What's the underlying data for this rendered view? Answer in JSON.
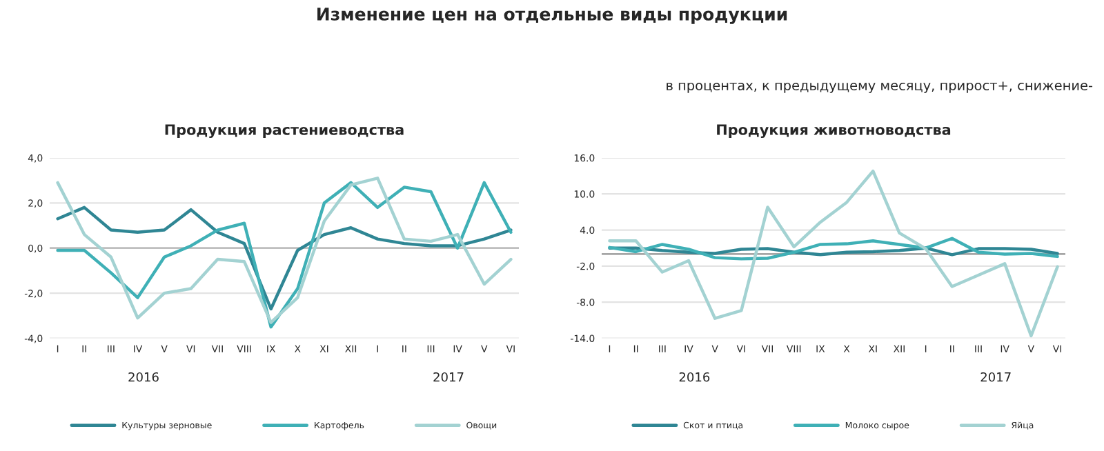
{
  "chart_data": [
    {
      "type": "line",
      "title": "Продукция растениеводства",
      "categories": [
        "I",
        "II",
        "III",
        "IV",
        "V",
        "VI",
        "VII",
        "VIII",
        "IX",
        "X",
        "XI",
        "XII",
        "I",
        "II",
        "III",
        "IV",
        "V",
        "VI"
      ],
      "series": [
        {
          "name": "Культуры зерновые",
          "color": "#2f8694",
          "values": [
            1.3,
            1.8,
            0.8,
            0.7,
            0.8,
            1.7,
            0.7,
            0.2,
            -2.7,
            -0.1,
            0.6,
            0.9,
            0.4,
            0.2,
            0.1,
            0.1,
            0.4,
            0.8
          ]
        },
        {
          "name": "Картофель",
          "color": "#3fb0b6",
          "values": [
            -0.1,
            -0.1,
            -1.1,
            -2.2,
            -0.4,
            0.1,
            0.8,
            1.1,
            -3.5,
            -1.8,
            2.0,
            2.9,
            1.8,
            2.7,
            2.5,
            0.0,
            2.9,
            0.7
          ]
        },
        {
          "name": "Овощи",
          "color": "#a3d2d2",
          "values": [
            2.9,
            0.6,
            -0.4,
            -3.1,
            -2.0,
            -1.8,
            -0.5,
            -0.6,
            -3.3,
            -2.2,
            1.2,
            2.8,
            3.1,
            0.4,
            0.3,
            0.6,
            -1.6,
            -0.5
          ]
        }
      ],
      "ylim": [
        -4,
        4
      ],
      "yticks": [
        {
          "value": -4,
          "label": "-4,0"
        },
        {
          "value": -2,
          "label": "-2,0"
        },
        {
          "value": 0,
          "label": "0,0"
        },
        {
          "value": 2,
          "label": "2,0"
        },
        {
          "value": 4,
          "label": "4,0"
        }
      ],
      "grid": "y",
      "legend": "bottom",
      "marker": "none",
      "line_style": "solid",
      "ref_lines": [
        {
          "axis": "y",
          "value": 0,
          "color": "#bfbfbf"
        }
      ],
      "annotations": [
        "Изменение цен на отдельные виды продукции",
        "в процентах, к предыдущему месяцу, прирост+, снижение-",
        "2016",
        "2017"
      ]
    },
    {
      "type": "line",
      "title": "Продукция животноводства",
      "categories": [
        "I",
        "II",
        "III",
        "IV",
        "V",
        "VI",
        "VII",
        "VIII",
        "IX",
        "X",
        "XI",
        "XII",
        "I",
        "II",
        "III",
        "IV",
        "V",
        "VI"
      ],
      "series": [
        {
          "name": "Скот и птица",
          "color": "#2f8694",
          "values": [
            1.0,
            1.0,
            0.6,
            0.3,
            0.1,
            0.8,
            0.9,
            0.3,
            -0.1,
            0.3,
            0.4,
            0.6,
            1.0,
            -0.1,
            0.9,
            0.9,
            0.8,
            0.1
          ]
        },
        {
          "name": "Молоко сырое",
          "color": "#3fb0b6",
          "values": [
            1.1,
            0.4,
            1.6,
            0.8,
            -0.6,
            -0.8,
            -0.7,
            0.3,
            1.6,
            1.7,
            2.2,
            1.6,
            1.0,
            2.6,
            0.3,
            0.0,
            0.1,
            -0.4
          ]
        },
        {
          "name": "Яйца",
          "color": "#a3d2d2",
          "values": [
            2.2,
            2.2,
            -3.0,
            -1.1,
            -10.7,
            -9.4,
            7.8,
            1.2,
            5.3,
            8.6,
            13.8,
            3.5,
            0.9,
            -5.4,
            -3.5,
            -1.6,
            -13.6,
            -2.1
          ]
        }
      ],
      "ylim": [
        -14,
        16
      ],
      "yticks": [
        {
          "value": -14,
          "label": "-14.0"
        },
        {
          "value": -8,
          "label": "-8.0"
        },
        {
          "value": -2,
          "label": "-2.0"
        },
        {
          "value": 4,
          "label": "4.0"
        },
        {
          "value": 10,
          "label": "10.0"
        },
        {
          "value": 16,
          "label": "16.0"
        }
      ],
      "grid": "y",
      "legend": "bottom",
      "marker": "none",
      "line_style": "solid",
      "ref_lines": [
        {
          "axis": "y",
          "value": 0,
          "color": "#a6a6a6"
        }
      ],
      "annotations": [
        "2016",
        "2017"
      ]
    }
  ]
}
